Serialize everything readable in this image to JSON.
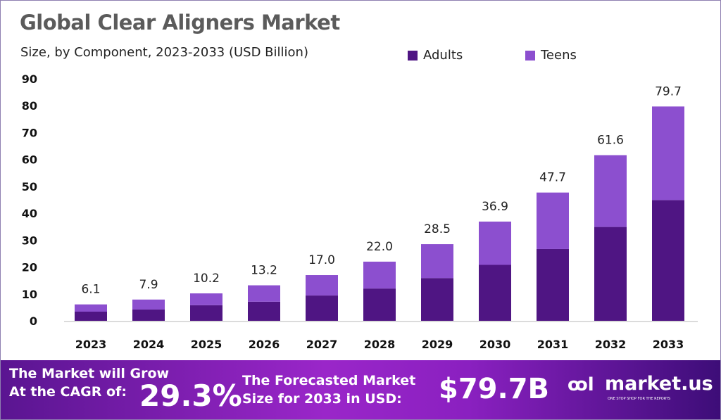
{
  "colors": {
    "adults": "#4f1583",
    "teens": "#8c4fcf",
    "axis": "#cfcfcf"
  },
  "chart_data": {
    "type": "bar",
    "stacked": true,
    "title": "Global Clear Aligners Market",
    "subtitle": "Size, by Component, 2023-2033 (USD Billion)",
    "categories": [
      "2023",
      "2024",
      "2025",
      "2026",
      "2027",
      "2028",
      "2029",
      "2030",
      "2031",
      "2032",
      "2033"
    ],
    "series": [
      {
        "name": "Adults",
        "values": [
          3.4,
          4.2,
          5.8,
          7.1,
          9.4,
          12.0,
          15.9,
          20.8,
          26.7,
          34.9,
          44.9
        ]
      },
      {
        "name": "Teens",
        "values": [
          2.7,
          3.7,
          4.4,
          6.1,
          7.6,
          10.0,
          12.6,
          16.1,
          21.0,
          26.7,
          34.8
        ]
      }
    ],
    "totals": [
      "6.1",
      "7.9",
      "10.2",
      "13.2",
      "17.0",
      "22.0",
      "28.5",
      "36.9",
      "47.7",
      "61.6",
      "79.7"
    ],
    "yticks": [
      0,
      10,
      20,
      30,
      40,
      50,
      60,
      70,
      80,
      90
    ],
    "ylim": [
      0,
      90
    ],
    "legend": "top",
    "grid": false
  },
  "banner": {
    "grow_line1": "The Market will Grow",
    "grow_line2": "At the CAGR of:",
    "cagr": "29.3%",
    "forecast_line1": "The Forecasted Market",
    "forecast_line2": "Size for 2033 in USD:",
    "forecast_value": "$79.7B",
    "logo_text": "market.us",
    "logo_tagline": "ONE STOP SHOP FOR THE REPORTS"
  }
}
